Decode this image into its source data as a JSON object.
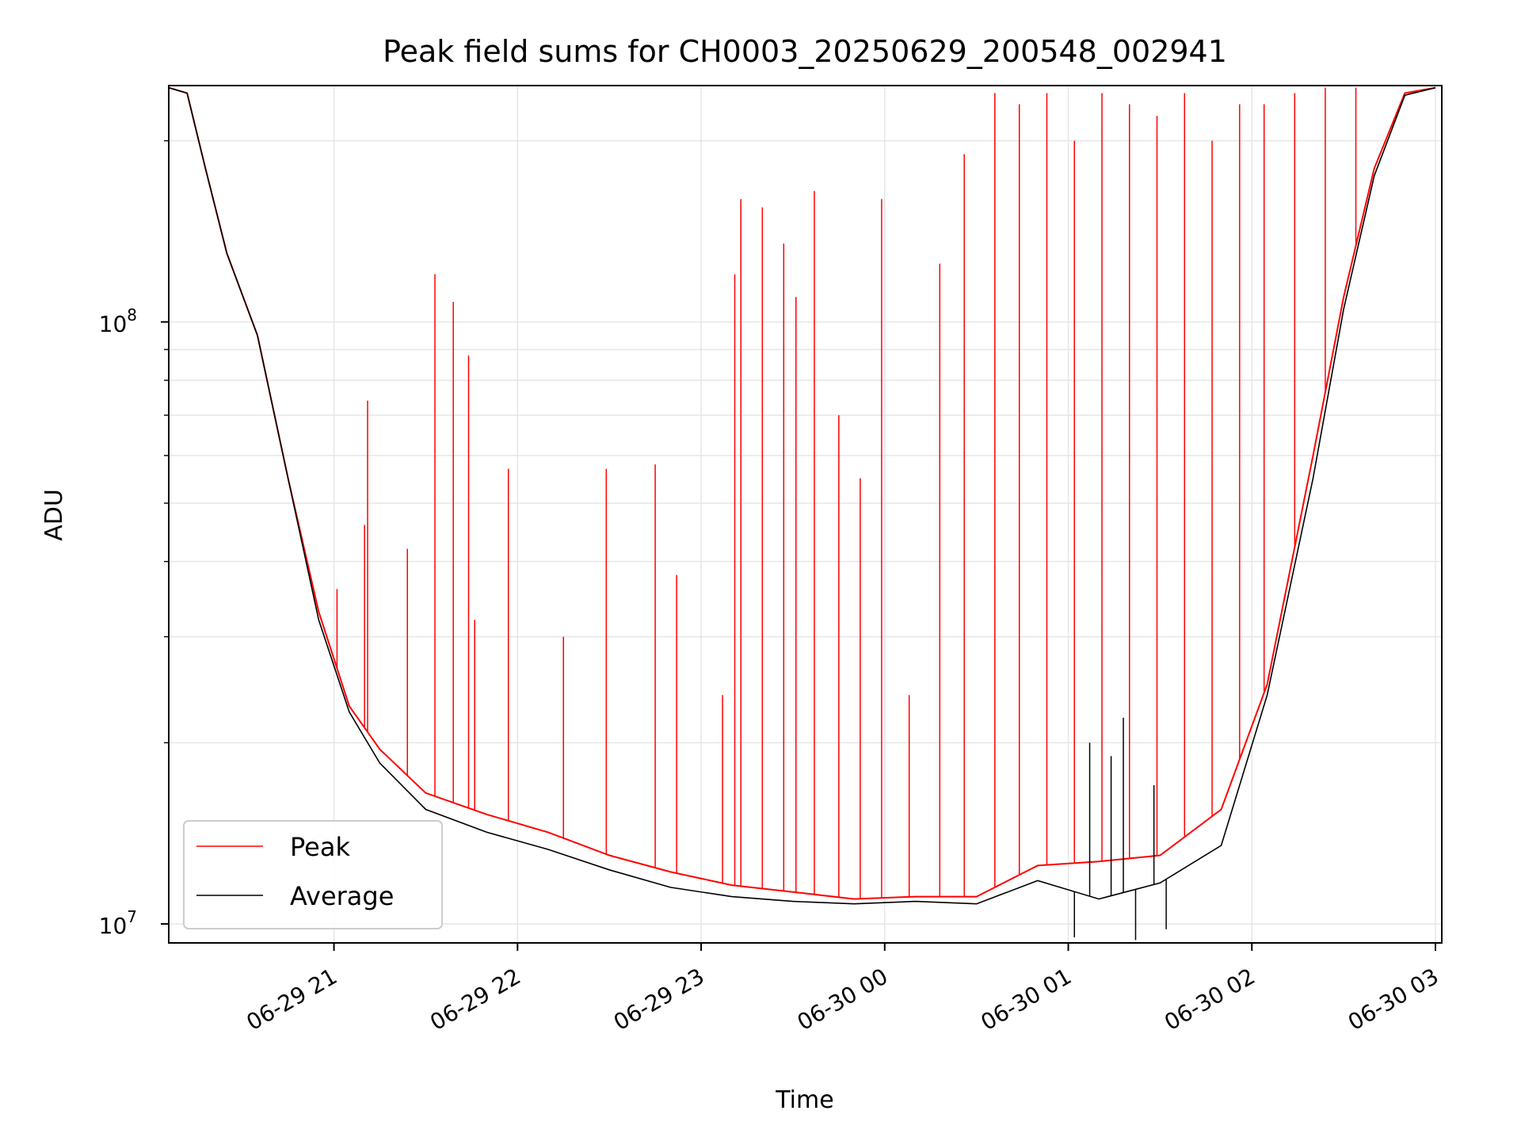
{
  "chart_data": {
    "type": "line",
    "title": "Peak field sums for CH0003_20250629_200548_002941",
    "xlabel": "Time",
    "ylabel": "ADU",
    "y_scale": "log",
    "ylim": [
      9300000,
      247000000
    ],
    "xlim": [
      "2025-06-29 20:06",
      "2025-06-30 03:00"
    ],
    "grid": true,
    "legend_position": "lower-left",
    "x_ticks": [
      {
        "time": "2025-06-29 21:00",
        "label": "06-29 21"
      },
      {
        "time": "2025-06-29 22:00",
        "label": "06-29 22"
      },
      {
        "time": "2025-06-29 23:00",
        "label": "06-29 23"
      },
      {
        "time": "2025-06-30 00:00",
        "label": "06-30 00"
      },
      {
        "time": "2025-06-30 01:00",
        "label": "06-30 01"
      },
      {
        "time": "2025-06-30 02:00",
        "label": "06-30 02"
      },
      {
        "time": "2025-06-30 03:00",
        "label": "06-30 03"
      }
    ],
    "y_ticks": [
      {
        "value": 10000000,
        "base": "10",
        "exp": "7"
      },
      {
        "value": 100000000,
        "base": "10",
        "exp": "8"
      }
    ],
    "series": [
      {
        "name": "Peak",
        "color": "#ff0000",
        "baseline": [
          [
            "2025-06-29 20:06",
            245000000
          ],
          [
            "2025-06-29 20:12",
            240000000
          ],
          [
            "2025-06-29 20:18",
            180000000
          ],
          [
            "2025-06-29 20:25",
            130000000
          ],
          [
            "2025-06-29 20:35",
            95000000
          ],
          [
            "2025-06-29 20:45",
            55000000
          ],
          [
            "2025-06-29 20:55",
            33000000
          ],
          [
            "2025-06-29 21:05",
            23000000
          ],
          [
            "2025-06-29 21:15",
            19500000
          ],
          [
            "2025-06-29 21:30",
            16500000
          ],
          [
            "2025-06-29 21:50",
            15200000
          ],
          [
            "2025-06-29 22:10",
            14200000
          ],
          [
            "2025-06-29 22:30",
            13000000
          ],
          [
            "2025-06-29 22:50",
            12200000
          ],
          [
            "2025-06-29 23:10",
            11600000
          ],
          [
            "2025-06-29 23:30",
            11300000
          ],
          [
            "2025-06-29 23:50",
            11000000
          ],
          [
            "2025-06-30 00:10",
            11100000
          ],
          [
            "2025-06-30 00:30",
            11100000
          ],
          [
            "2025-06-30 00:50",
            12500000
          ],
          [
            "2025-06-30 01:10",
            12700000
          ],
          [
            "2025-06-30 01:30",
            13000000
          ],
          [
            "2025-06-30 01:50",
            15500000
          ],
          [
            "2025-06-30 02:05",
            25000000
          ],
          [
            "2025-06-30 02:20",
            60000000
          ],
          [
            "2025-06-30 02:30",
            110000000
          ],
          [
            "2025-06-30 02:40",
            180000000
          ],
          [
            "2025-06-30 02:50",
            240000000
          ],
          [
            "2025-06-30 03:00",
            245000000
          ]
        ],
        "spikes": [
          [
            "2025-06-29 21:01",
            36000000
          ],
          [
            "2025-06-29 21:10",
            46000000
          ],
          [
            "2025-06-29 21:11",
            74000000
          ],
          [
            "2025-06-29 21:24",
            42000000
          ],
          [
            "2025-06-29 21:33",
            120000000
          ],
          [
            "2025-06-29 21:39",
            108000000
          ],
          [
            "2025-06-29 21:44",
            88000000
          ],
          [
            "2025-06-29 21:46",
            32000000
          ],
          [
            "2025-06-29 21:57",
            57000000
          ],
          [
            "2025-06-29 22:15",
            30000000
          ],
          [
            "2025-06-29 22:29",
            57000000
          ],
          [
            "2025-06-29 22:45",
            58000000
          ],
          [
            "2025-06-29 22:52",
            38000000
          ],
          [
            "2025-06-29 23:07",
            24000000
          ],
          [
            "2025-06-29 23:11",
            120000000
          ],
          [
            "2025-06-29 23:13",
            160000000
          ],
          [
            "2025-06-29 23:20",
            155000000
          ],
          [
            "2025-06-29 23:27",
            135000000
          ],
          [
            "2025-06-29 23:31",
            110000000
          ],
          [
            "2025-06-29 23:37",
            165000000
          ],
          [
            "2025-06-29 23:45",
            70000000
          ],
          [
            "2025-06-29 23:52",
            55000000
          ],
          [
            "2025-06-29 23:59",
            160000000
          ],
          [
            "2025-06-30 00:08",
            24000000
          ],
          [
            "2025-06-30 00:18",
            125000000
          ],
          [
            "2025-06-30 00:26",
            190000000
          ],
          [
            "2025-06-30 00:36",
            240000000
          ],
          [
            "2025-06-30 00:44",
            230000000
          ],
          [
            "2025-06-30 00:53",
            240000000
          ],
          [
            "2025-06-30 01:02",
            200000000
          ],
          [
            "2025-06-30 01:11",
            240000000
          ],
          [
            "2025-06-30 01:20",
            230000000
          ],
          [
            "2025-06-30 01:29",
            220000000
          ],
          [
            "2025-06-30 01:38",
            240000000
          ],
          [
            "2025-06-30 01:47",
            200000000
          ],
          [
            "2025-06-30 01:56",
            230000000
          ],
          [
            "2025-06-30 02:04",
            230000000
          ],
          [
            "2025-06-30 02:14",
            240000000
          ],
          [
            "2025-06-30 02:24",
            245000000
          ],
          [
            "2025-06-30 02:34",
            245000000
          ]
        ]
      },
      {
        "name": "Average",
        "color": "#000000",
        "baseline": [
          [
            "2025-06-29 20:06",
            245000000
          ],
          [
            "2025-06-29 20:12",
            240000000
          ],
          [
            "2025-06-29 20:18",
            180000000
          ],
          [
            "2025-06-29 20:25",
            130000000
          ],
          [
            "2025-06-29 20:35",
            95000000
          ],
          [
            "2025-06-29 20:45",
            55000000
          ],
          [
            "2025-06-29 20:55",
            32000000
          ],
          [
            "2025-06-29 21:05",
            22500000
          ],
          [
            "2025-06-29 21:15",
            18500000
          ],
          [
            "2025-06-29 21:30",
            15500000
          ],
          [
            "2025-06-29 21:50",
            14200000
          ],
          [
            "2025-06-29 22:10",
            13300000
          ],
          [
            "2025-06-29 22:30",
            12300000
          ],
          [
            "2025-06-29 22:50",
            11500000
          ],
          [
            "2025-06-29 23:10",
            11100000
          ],
          [
            "2025-06-29 23:30",
            10900000
          ],
          [
            "2025-06-29 23:50",
            10800000
          ],
          [
            "2025-06-30 00:10",
            10900000
          ],
          [
            "2025-06-30 00:30",
            10800000
          ],
          [
            "2025-06-30 00:50",
            11800000
          ],
          [
            "2025-06-30 01:10",
            11000000
          ],
          [
            "2025-06-30 01:30",
            11700000
          ],
          [
            "2025-06-30 01:50",
            13500000
          ],
          [
            "2025-06-30 02:05",
            24000000
          ],
          [
            "2025-06-30 02:20",
            55000000
          ],
          [
            "2025-06-30 02:30",
            105000000
          ],
          [
            "2025-06-30 02:40",
            175000000
          ],
          [
            "2025-06-30 02:50",
            238000000
          ],
          [
            "2025-06-30 03:00",
            245000000
          ]
        ],
        "spikes": [
          [
            "2025-06-30 01:02",
            9500000
          ],
          [
            "2025-06-30 01:07",
            20000000
          ],
          [
            "2025-06-30 01:14",
            19000000
          ],
          [
            "2025-06-30 01:18",
            22000000
          ],
          [
            "2025-06-30 01:22",
            9400000
          ],
          [
            "2025-06-30 01:28",
            17000000
          ],
          [
            "2025-06-30 01:32",
            9800000
          ]
        ]
      }
    ]
  }
}
